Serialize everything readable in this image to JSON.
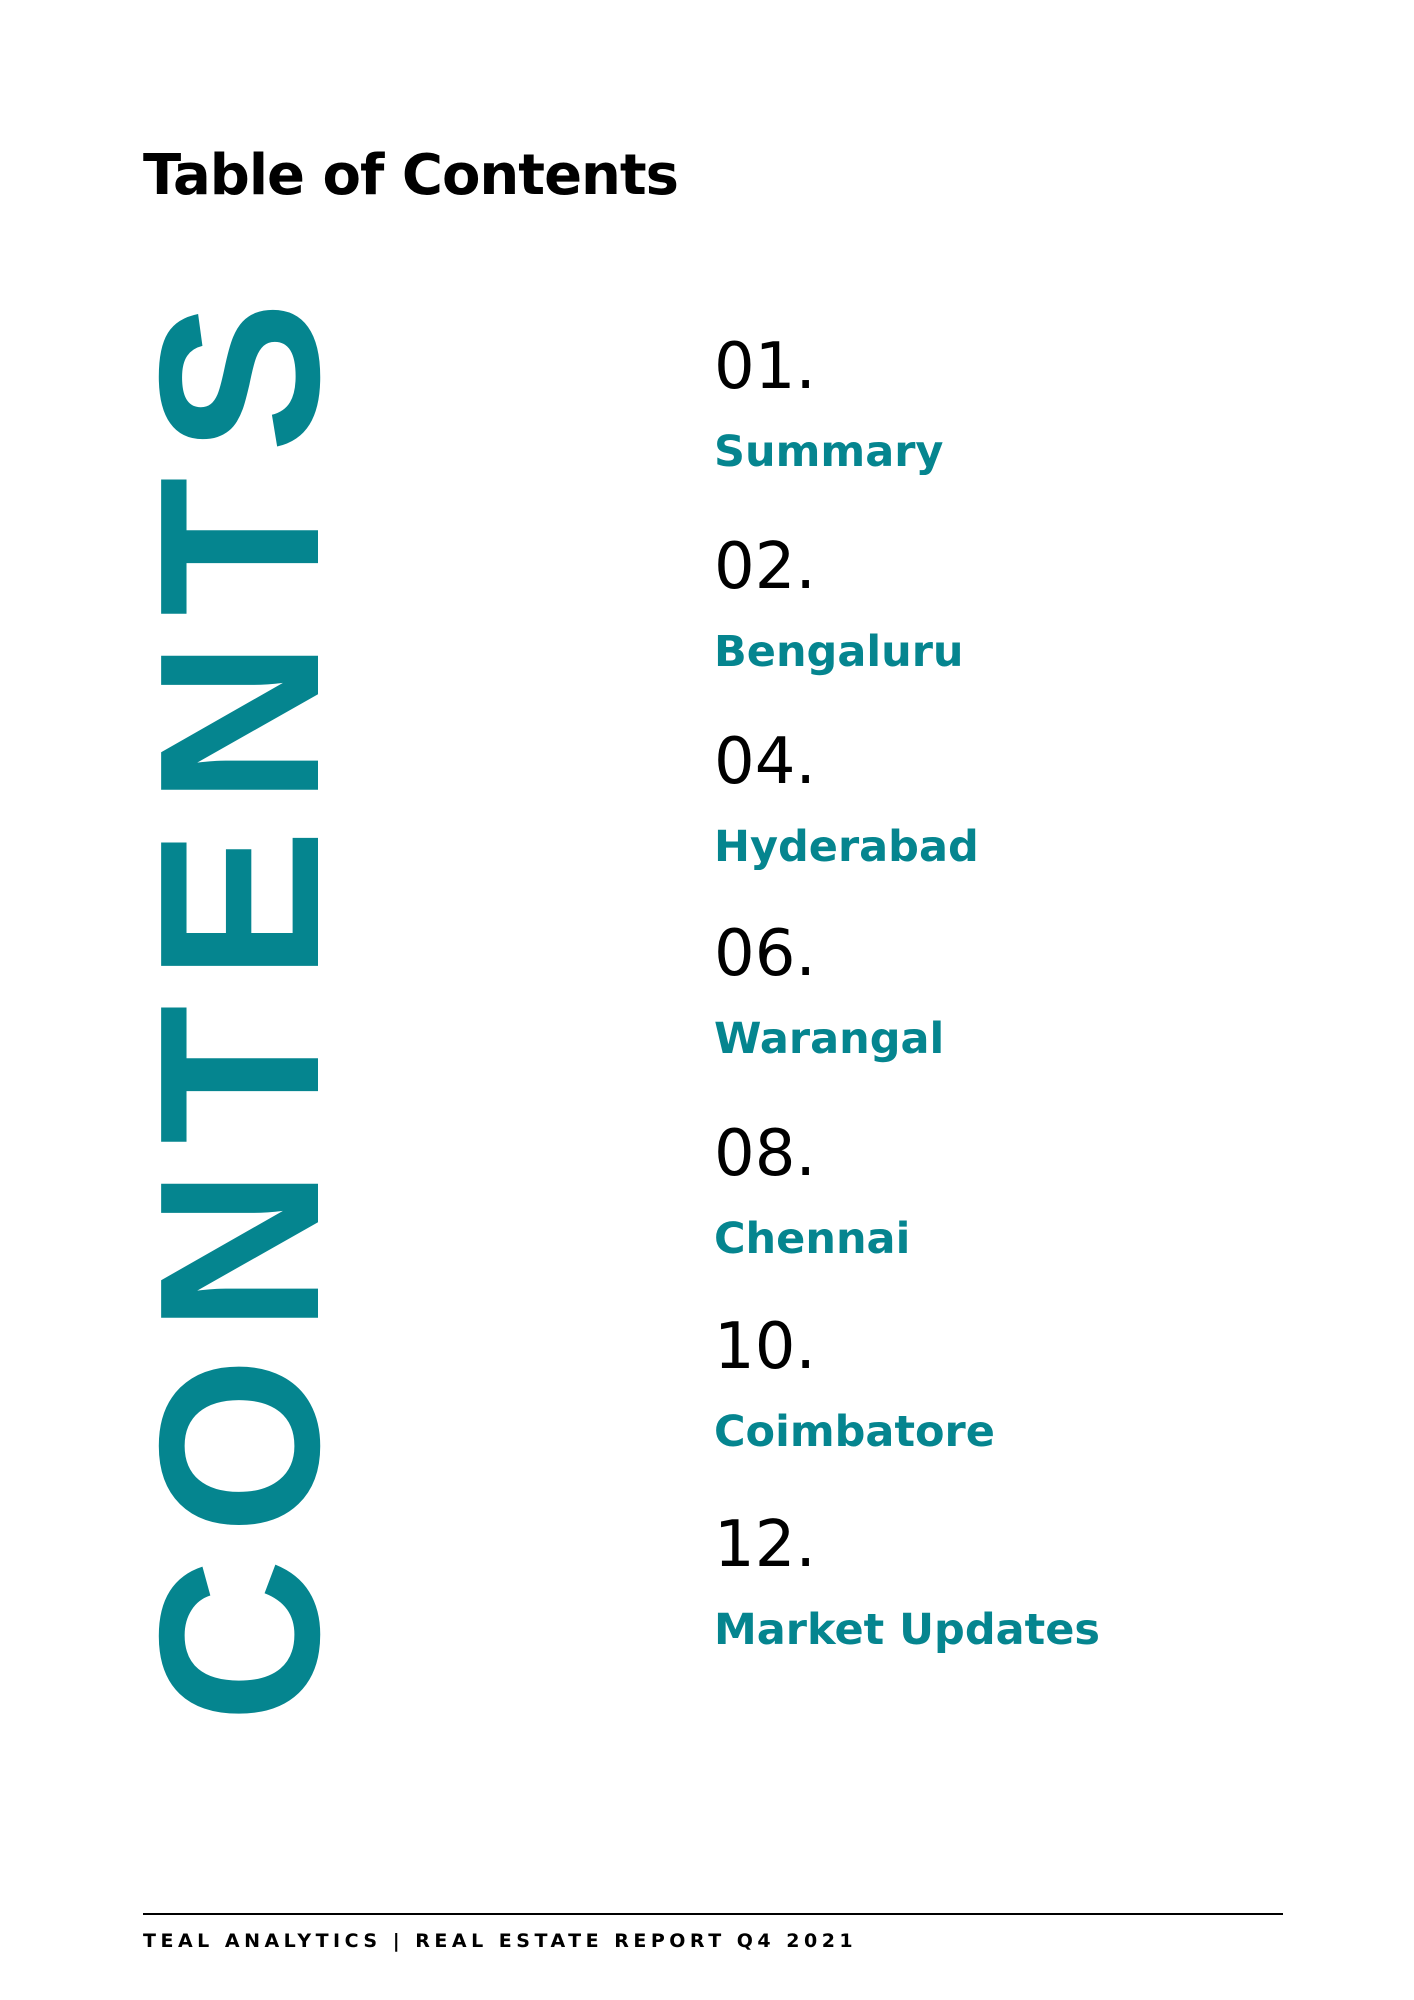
{
  "page": {
    "title": "Table of Contents",
    "vertical_word": "CONTENTS",
    "accent_color": "#05858f"
  },
  "toc": {
    "items": [
      {
        "number": "01.",
        "label": "Summary"
      },
      {
        "number": "02.",
        "label": "Bengaluru"
      },
      {
        "number": "04.",
        "label": "Hyderabad"
      },
      {
        "number": "06.",
        "label": "Warangal"
      },
      {
        "number": "08.",
        "label": "Chennai"
      },
      {
        "number": "10.",
        "label": "Coimbatore"
      },
      {
        "number": "12.",
        "label": "Market Updates"
      }
    ]
  },
  "footer": {
    "text": "TEAL ANALYTICS | REAL ESTATE REPORT Q4 2021"
  }
}
